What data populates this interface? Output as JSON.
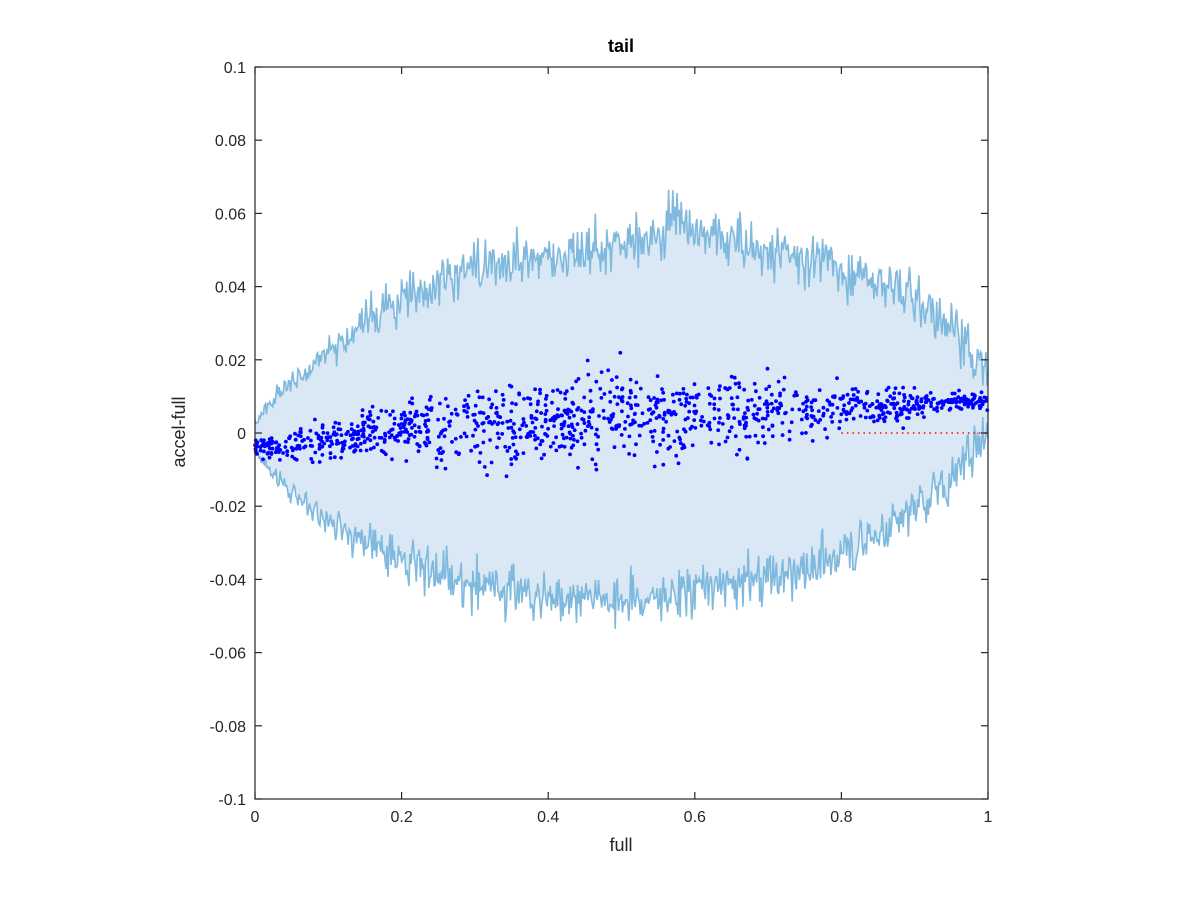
{
  "chart_data": {
    "type": "scatter",
    "title": "tail",
    "xlabel": "full",
    "ylabel": "accel-full",
    "xlim": [
      0,
      1
    ],
    "ylim": [
      -0.1,
      0.1
    ],
    "xticks": [
      0,
      0.2,
      0.4,
      0.6,
      0.8,
      1
    ],
    "xtick_labels": [
      "0",
      "0.2",
      "0.4",
      "0.6",
      "0.8",
      "1"
    ],
    "yticks": [
      -0.1,
      -0.08,
      -0.06,
      -0.04,
      -0.02,
      0,
      0.02,
      0.04,
      0.06,
      0.08,
      0.1
    ],
    "ytick_labels": [
      "-0.1",
      "-0.08",
      "-0.06",
      "-0.04",
      "-0.02",
      "0",
      "0.02",
      "0.04",
      "0.06",
      "0.08",
      "0.1"
    ],
    "grid": false,
    "colors": {
      "band_fill": "#d9e8f4",
      "band_line": "#7fb9de",
      "points": "#0000ff",
      "zero_line": "#ff0000",
      "axes": "#262626"
    },
    "envelope": {
      "x": [
        0,
        0.02,
        0.05,
        0.1,
        0.15,
        0.2,
        0.25,
        0.3,
        0.35,
        0.4,
        0.45,
        0.5,
        0.55,
        0.57,
        0.6,
        0.65,
        0.7,
        0.75,
        0.8,
        0.85,
        0.9,
        0.95,
        1.0
      ],
      "upper": [
        0.003,
        0.008,
        0.014,
        0.022,
        0.03,
        0.036,
        0.041,
        0.045,
        0.047,
        0.048,
        0.05,
        0.052,
        0.053,
        0.06,
        0.055,
        0.053,
        0.05,
        0.048,
        0.045,
        0.042,
        0.037,
        0.028,
        0.018
      ],
      "lower": [
        -0.005,
        -0.01,
        -0.016,
        -0.024,
        -0.03,
        -0.034,
        -0.038,
        -0.041,
        -0.043,
        -0.044,
        -0.045,
        -0.046,
        -0.045,
        -0.044,
        -0.043,
        -0.042,
        -0.04,
        -0.037,
        -0.033,
        -0.028,
        -0.02,
        -0.012,
        0.0
      ]
    },
    "trend": {
      "x": [
        0,
        0.05,
        0.1,
        0.2,
        0.3,
        0.4,
        0.5,
        0.6,
        0.7,
        0.8,
        0.9,
        1.0
      ],
      "y": [
        -0.003,
        -0.004,
        -0.002,
        0.001,
        0.002,
        0.003,
        0.004,
        0.005,
        0.006,
        0.007,
        0.008,
        0.009
      ]
    },
    "zero_line": {
      "x": [
        0.8,
        1.0
      ],
      "y": 0
    }
  }
}
